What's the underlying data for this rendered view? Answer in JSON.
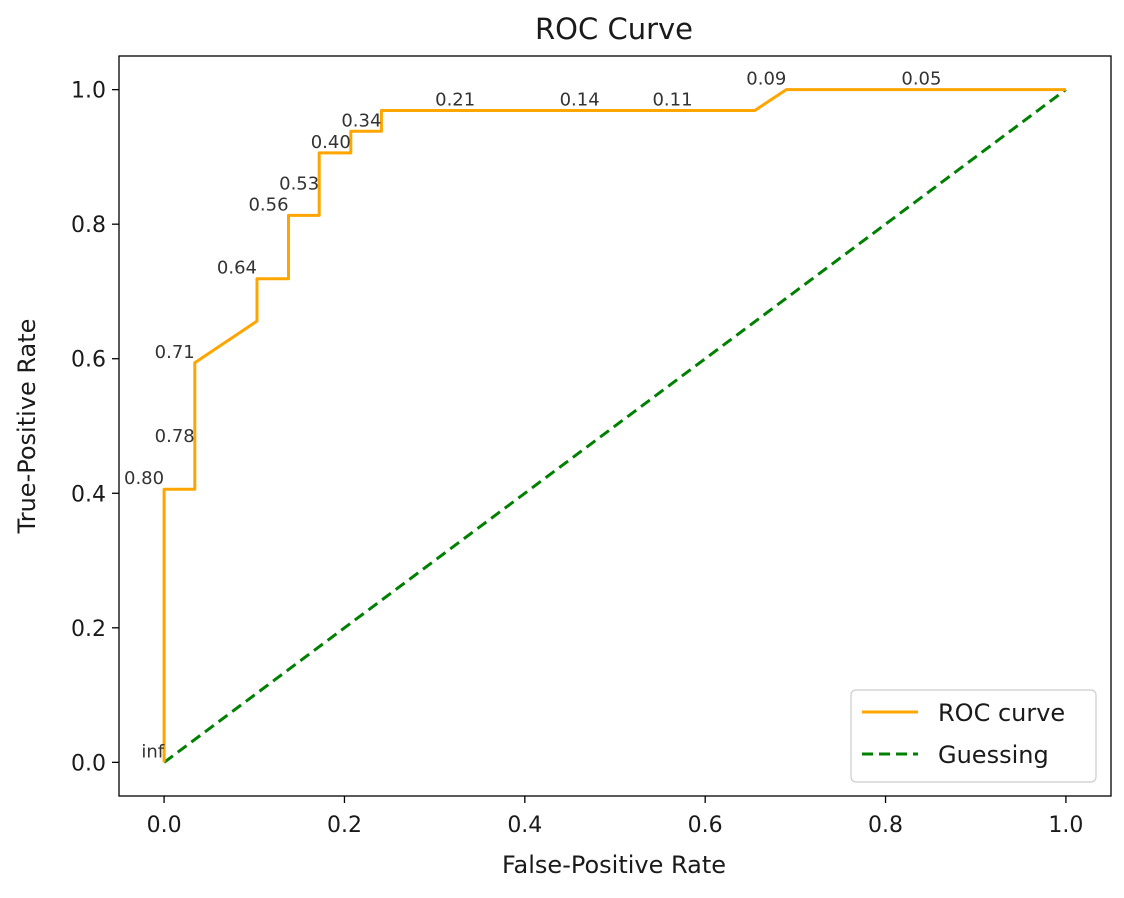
{
  "chart_data": {
    "type": "line",
    "title": "ROC Curve",
    "xlabel": "False-Positive Rate",
    "ylabel": "True-Positive Rate",
    "xlim": [
      -0.05,
      1.05
    ],
    "ylim": [
      -0.05,
      1.05
    ],
    "xticks": [
      "0.0",
      "0.2",
      "0.4",
      "0.6",
      "0.8",
      "1.0"
    ],
    "yticks": [
      "0.0",
      "0.2",
      "0.4",
      "0.6",
      "0.8",
      "1.0"
    ],
    "grid": false,
    "legend_position": "bottom-right",
    "series": [
      {
        "name": "ROC curve",
        "color": "#ffa500",
        "style": "solid",
        "x": [
          0.0,
          0.0,
          0.034,
          0.034,
          0.103,
          0.103,
          0.138,
          0.138,
          0.172,
          0.172,
          0.207,
          0.207,
          0.241,
          0.241,
          0.655,
          0.69,
          1.0
        ],
        "y": [
          0.0,
          0.406,
          0.406,
          0.594,
          0.656,
          0.719,
          0.719,
          0.813,
          0.813,
          0.906,
          0.906,
          0.938,
          0.938,
          0.969,
          0.969,
          1.0,
          1.0
        ]
      },
      {
        "name": "Guessing",
        "color": "#008000",
        "style": "dashed",
        "x": [
          0.0,
          1.0
        ],
        "y": [
          0.0,
          1.0
        ]
      }
    ],
    "annotations": [
      {
        "text": "inf",
        "x": 0.0,
        "y": 0.0
      },
      {
        "text": "0.80",
        "x": 0.0,
        "y": 0.406
      },
      {
        "text": "0.78",
        "x": 0.034,
        "y": 0.469
      },
      {
        "text": "0.71",
        "x": 0.034,
        "y": 0.594
      },
      {
        "text": "0.64",
        "x": 0.103,
        "y": 0.719
      },
      {
        "text": "0.56",
        "x": 0.138,
        "y": 0.813
      },
      {
        "text": "0.53",
        "x": 0.172,
        "y": 0.844
      },
      {
        "text": "0.40",
        "x": 0.207,
        "y": 0.906
      },
      {
        "text": "0.34",
        "x": 0.241,
        "y": 0.938
      },
      {
        "text": "0.21",
        "x": 0.345,
        "y": 0.969
      },
      {
        "text": "0.14",
        "x": 0.483,
        "y": 0.969
      },
      {
        "text": "0.11",
        "x": 0.586,
        "y": 0.969
      },
      {
        "text": "0.09",
        "x": 0.69,
        "y": 1.0
      },
      {
        "text": "0.05",
        "x": 0.862,
        "y": 1.0
      }
    ]
  }
}
